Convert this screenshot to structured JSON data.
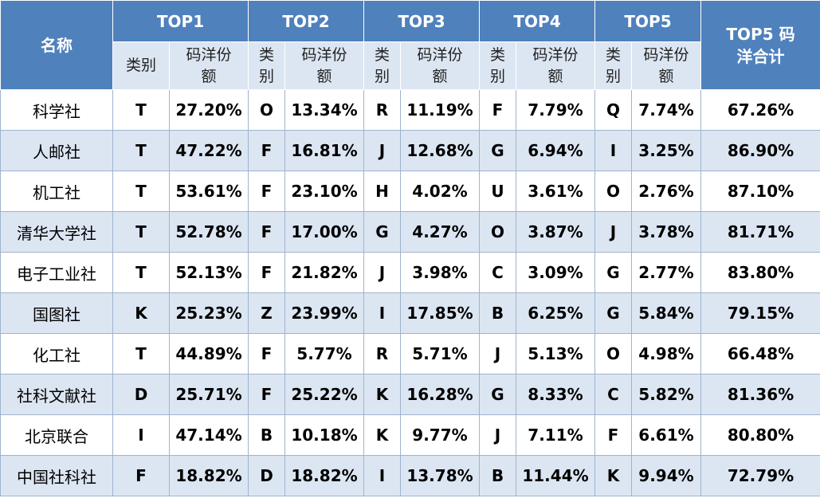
{
  "header": {
    "name_label": "名称",
    "groups": [
      "TOP1",
      "TOP2",
      "TOP3",
      "TOP4",
      "TOP5"
    ],
    "total_label": "TOP5 码洋合计",
    "sub_category": "类别",
    "sub_share": "码洋份额"
  },
  "rows": [
    {
      "name": "科学社",
      "entries": [
        [
          "T",
          "27.20%"
        ],
        [
          "O",
          "13.34%"
        ],
        [
          "R",
          "11.19%"
        ],
        [
          "F",
          "7.79%"
        ],
        [
          "Q",
          "7.74%"
        ]
      ],
      "total": "67.26%"
    },
    {
      "name": "人邮社",
      "entries": [
        [
          "T",
          "47.22%"
        ],
        [
          "F",
          "16.81%"
        ],
        [
          "J",
          "12.68%"
        ],
        [
          "G",
          "6.94%"
        ],
        [
          "I",
          "3.25%"
        ]
      ],
      "total": "86.90%"
    },
    {
      "name": "机工社",
      "entries": [
        [
          "T",
          "53.61%"
        ],
        [
          "F",
          "23.10%"
        ],
        [
          "H",
          "4.02%"
        ],
        [
          "U",
          "3.61%"
        ],
        [
          "O",
          "2.76%"
        ]
      ],
      "total": "87.10%"
    },
    {
      "name": "清华大学社",
      "entries": [
        [
          "T",
          "52.78%"
        ],
        [
          "F",
          "17.00%"
        ],
        [
          "G",
          "4.27%"
        ],
        [
          "O",
          "3.87%"
        ],
        [
          "J",
          "3.78%"
        ]
      ],
      "total": "81.71%"
    },
    {
      "name": "电子工业社",
      "entries": [
        [
          "T",
          "52.13%"
        ],
        [
          "F",
          "21.82%"
        ],
        [
          "J",
          "3.98%"
        ],
        [
          "C",
          "3.09%"
        ],
        [
          "G",
          "2.77%"
        ]
      ],
      "total": "83.80%"
    },
    {
      "name": "国图社",
      "entries": [
        [
          "K",
          "25.23%"
        ],
        [
          "Z",
          "23.99%"
        ],
        [
          "I",
          "17.85%"
        ],
        [
          "B",
          "6.25%"
        ],
        [
          "G",
          "5.84%"
        ]
      ],
      "total": "79.15%"
    },
    {
      "name": "化工社",
      "entries": [
        [
          "T",
          "44.89%"
        ],
        [
          "F",
          "5.77%"
        ],
        [
          "R",
          "5.71%"
        ],
        [
          "J",
          "5.13%"
        ],
        [
          "O",
          "4.98%"
        ]
      ],
      "total": "66.48%"
    },
    {
      "name": "社科文献社",
      "entries": [
        [
          "D",
          "25.71%"
        ],
        [
          "F",
          "25.22%"
        ],
        [
          "K",
          "16.28%"
        ],
        [
          "G",
          "8.33%"
        ],
        [
          "C",
          "5.82%"
        ]
      ],
      "total": "81.36%"
    },
    {
      "name": "北京联合",
      "entries": [
        [
          "I",
          "47.14%"
        ],
        [
          "B",
          "10.18%"
        ],
        [
          "K",
          "9.77%"
        ],
        [
          "J",
          "7.11%"
        ],
        [
          "F",
          "6.61%"
        ]
      ],
      "total": "80.80%"
    },
    {
      "name": "中国社科社",
      "entries": [
        [
          "F",
          "18.82%"
        ],
        [
          "D",
          "18.82%"
        ],
        [
          "I",
          "13.78%"
        ],
        [
          "B",
          "11.44%"
        ],
        [
          "K",
          "9.94%"
        ]
      ],
      "total": "72.79%"
    }
  ]
}
